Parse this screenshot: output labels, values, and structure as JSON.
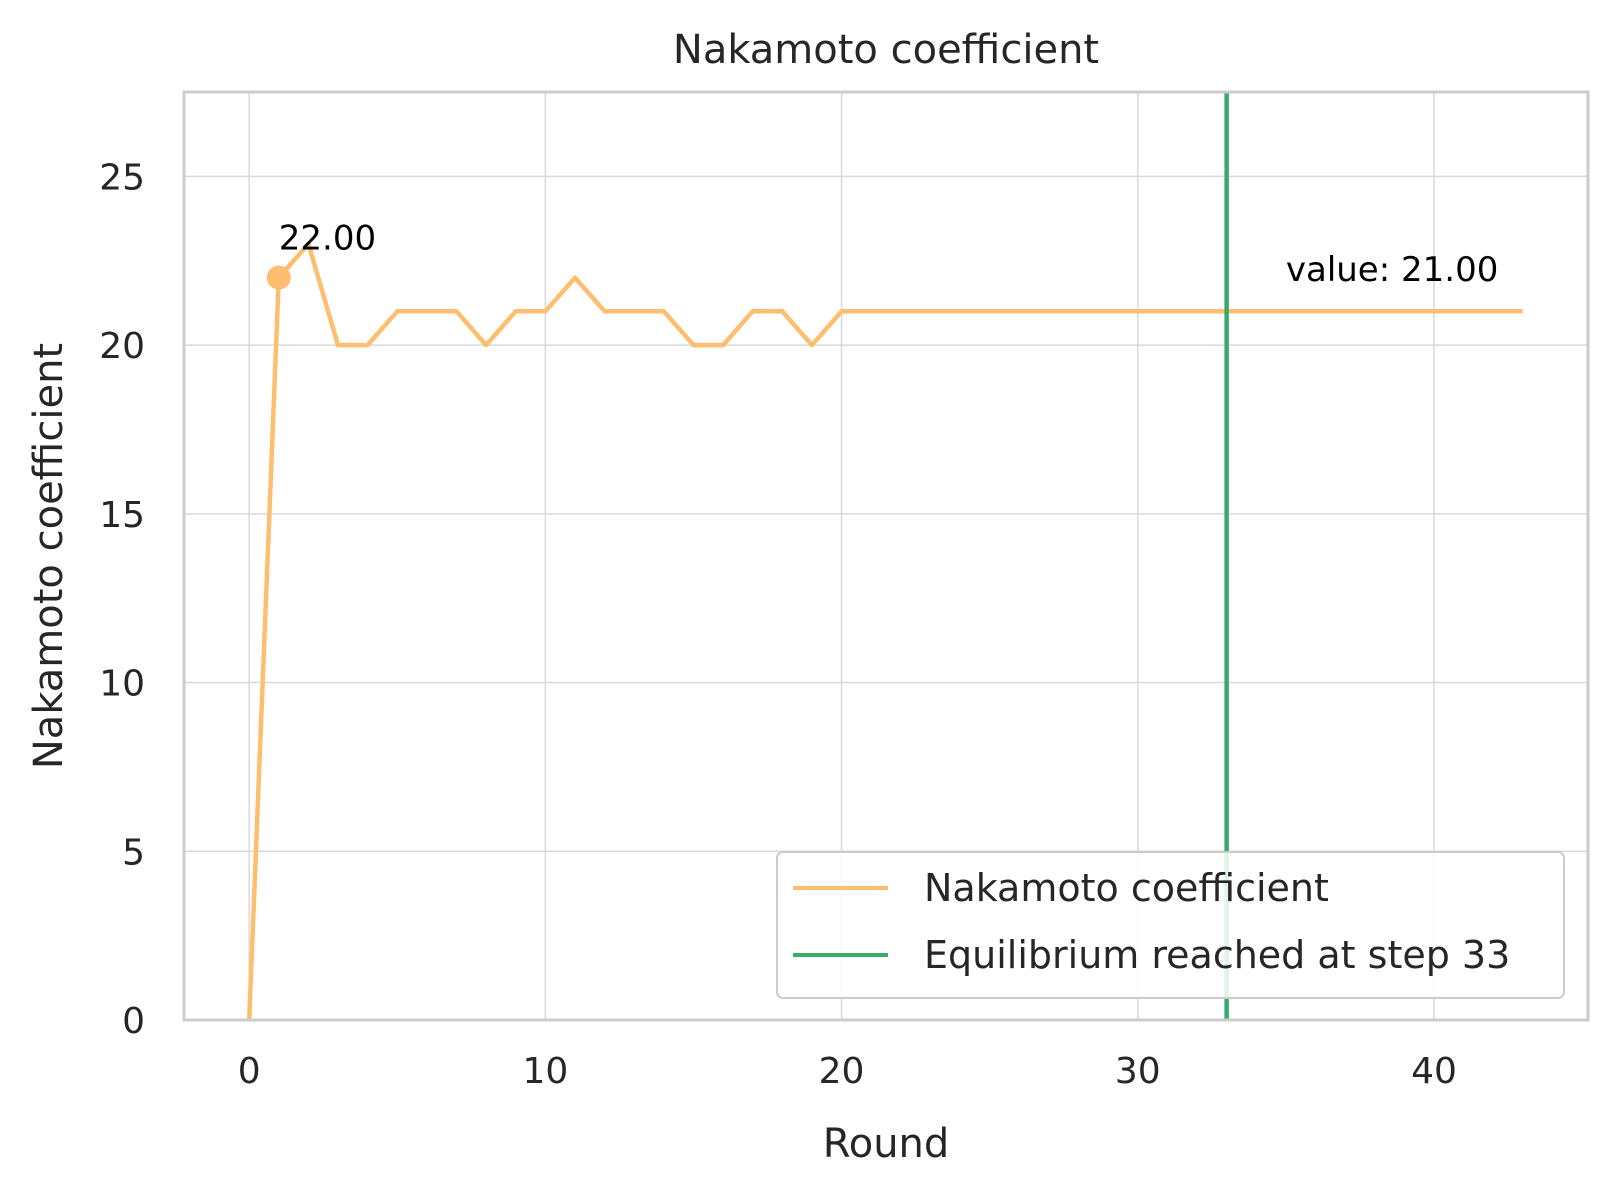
{
  "chart_data": {
    "type": "line",
    "title": "Nakamoto coefficient",
    "xlabel": "Round",
    "ylabel": "Nakamoto coefficient",
    "xlim": [
      -2.2,
      45.2
    ],
    "ylim": [
      0,
      27.5
    ],
    "xticks": [
      0,
      10,
      20,
      30,
      40
    ],
    "yticks": [
      0,
      5,
      10,
      15,
      20,
      25
    ],
    "grid": true,
    "legend_position": "lower-right",
    "series": [
      {
        "name": "Nakamoto coefficient",
        "color": "#fdbf6f",
        "x": [
          0,
          1,
          2,
          3,
          4,
          5,
          6,
          7,
          8,
          9,
          10,
          11,
          12,
          13,
          14,
          15,
          16,
          17,
          18,
          19,
          20,
          21,
          22,
          23,
          24,
          25,
          26,
          27,
          28,
          29,
          30,
          31,
          32,
          33,
          34,
          35,
          36,
          37,
          38,
          39,
          40,
          41,
          42,
          43
        ],
        "y": [
          0,
          22,
          23,
          20,
          20,
          21,
          21,
          21,
          20,
          21,
          21,
          22,
          21,
          21,
          21,
          20,
          20,
          21,
          21,
          20,
          21,
          21,
          21,
          21,
          21,
          21,
          21,
          21,
          21,
          21,
          21,
          21,
          21,
          21,
          21,
          21,
          21,
          21,
          21,
          21,
          21,
          21,
          21,
          21
        ]
      }
    ],
    "vline": {
      "name": "Equilibrium reached at step 33",
      "x": 33,
      "color": "#3aaa6a"
    },
    "marker": {
      "x": 1,
      "y": 22,
      "label": "22.00"
    },
    "end_annotation": {
      "x": 35,
      "y": 21.9,
      "label": "value: 21.00"
    }
  }
}
